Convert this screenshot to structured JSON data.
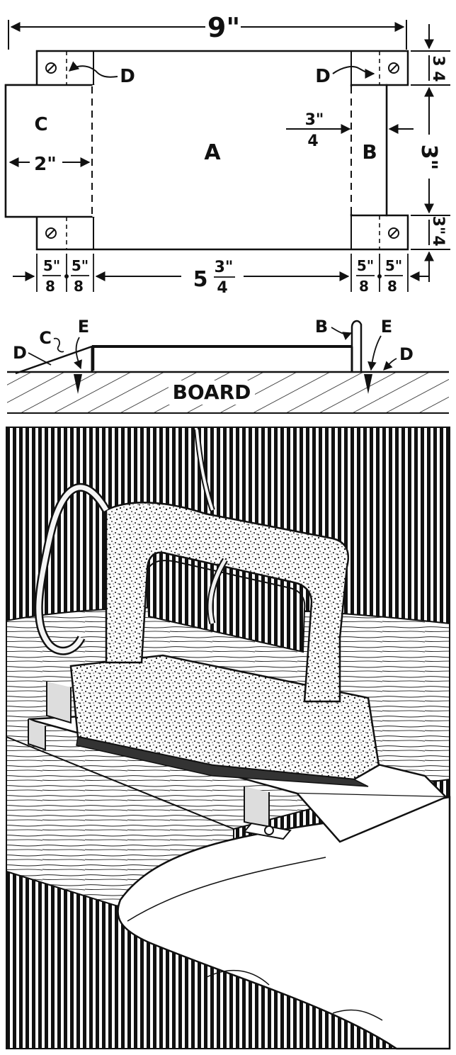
{
  "plan": {
    "overall_width": "9\"",
    "labels": {
      "a": "A",
      "b": "B",
      "c": "C",
      "d_left": "D",
      "d_right": "D"
    },
    "dims": {
      "c_width": "2\"",
      "b_gap_top": "3\"",
      "b_gap_bottom": "4",
      "right_tab_top_num": "3",
      "right_tab_top_den": "4",
      "right_height": "3\"",
      "right_tab_bottom_num": "3\"",
      "right_tab_bottom_den": "4",
      "bottom_5_8_a_num": "5\"",
      "bottom_5_8_a_den": "8",
      "bottom_5_8_b_num": "5\"",
      "bottom_5_8_b_den": "8",
      "bottom_center_whole": "5",
      "bottom_center_num": "3\"",
      "bottom_center_den": "4",
      "bottom_5_8_c_num": "5\"",
      "bottom_5_8_c_den": "8",
      "bottom_5_8_d_num": "5\"",
      "bottom_5_8_d_den": "8"
    }
  },
  "section": {
    "board_label": "BOARD",
    "labels": {
      "d_left": "D",
      "c": "C",
      "e_left": "E",
      "b": "B",
      "e_right": "E",
      "d_right": "D"
    }
  },
  "illustration": {
    "subject": "iron resting on stand"
  }
}
